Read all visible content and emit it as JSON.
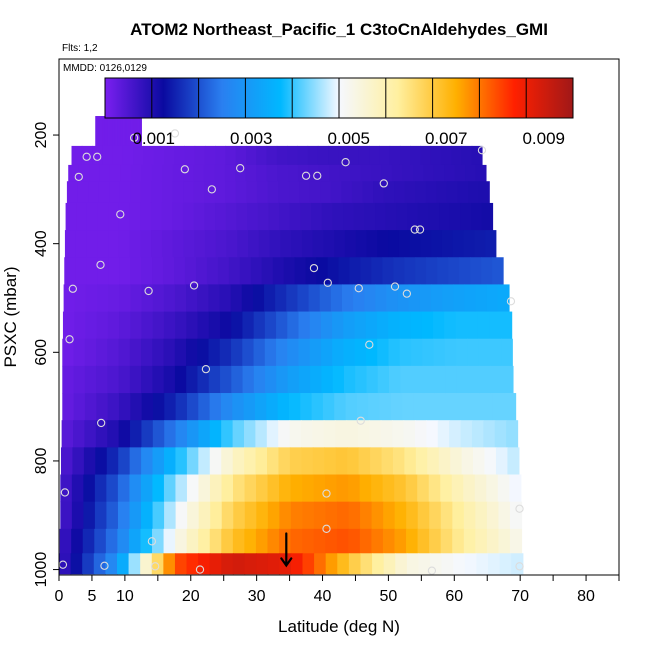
{
  "chart_data": {
    "type": "heatmap",
    "title": "ATOM2 Northeast_Pacific_1 C3toCnAldehydes_GMI",
    "subtitle_flights": "Flts: 1,2",
    "subtitle_dates": "MMDD: 0126,0129",
    "xlabel": "Latitude (deg N)",
    "ylabel": "PSXC (mbar)",
    "xlim": [
      0,
      85
    ],
    "ylim": [
      1010,
      60
    ],
    "x_ticks": [
      0,
      5,
      10,
      20,
      30,
      40,
      50,
      60,
      70,
      80
    ],
    "x_minor_ticks": [
      15,
      25,
      35,
      45,
      55,
      65,
      75,
      85
    ],
    "y_ticks": [
      200,
      400,
      600,
      800,
      1000
    ],
    "colorbar": {
      "min": 0.0,
      "max": 0.0096,
      "tick_values": [
        0.001,
        0.003,
        0.005,
        0.007,
        0.009
      ],
      "tick_labels": [
        "0.001",
        "0.003",
        "0.005",
        "0.007",
        "0.009"
      ],
      "colors": [
        "#7a1ff0",
        "#0a0aa0",
        "#2a7ff0",
        "#00b8ff",
        "#f5f8ff",
        "#fff0a0",
        "#ffb000",
        "#ff2000",
        "#a01818"
      ]
    },
    "marker": {
      "latitude": 34.5,
      "pressure": 985,
      "symbol": "down-arrow"
    },
    "rows": [
      {
        "p": 200,
        "xmin": 5.5,
        "xmax": 12.5,
        "v": [
          0.0001,
          0.0001
        ]
      },
      {
        "p": 240,
        "xmin": 1.9,
        "xmax": 64.2,
        "v": [
          0.0001,
          0.0001,
          0.0002,
          0.0003,
          0.0006,
          0.0007,
          0.0007,
          0.0008,
          0.0009
        ]
      },
      {
        "p": 270,
        "xmin": 1.4,
        "xmax": 64.8,
        "v": [
          0.0001,
          0.0001,
          0.0002,
          0.0003,
          0.0005,
          0.0006,
          0.0007,
          0.0008,
          0.0009
        ]
      },
      {
        "p": 300,
        "xmin": 1.2,
        "xmax": 65.3,
        "v": [
          0.0001,
          0.0001,
          0.0002,
          0.0003,
          0.0005,
          0.0006,
          0.0008,
          0.0009,
          0.001
        ]
      },
      {
        "p": 350,
        "xmin": 1.0,
        "xmax": 65.8,
        "v": [
          0.0001,
          0.0001,
          0.0002,
          0.0004,
          0.0006,
          0.0008,
          0.0009,
          0.001,
          0.0011
        ]
      },
      {
        "p": 400,
        "xmin": 0.9,
        "xmax": 66.3,
        "v": [
          0.0001,
          0.0001,
          0.0003,
          0.0005,
          0.0008,
          0.001,
          0.0012,
          0.0013,
          0.0014
        ]
      },
      {
        "p": 450,
        "xmin": 0.8,
        "xmax": 67.4,
        "v": [
          0.0001,
          0.0001,
          0.0003,
          0.0006,
          0.001,
          0.0013,
          0.0016,
          0.0018,
          0.002
        ]
      },
      {
        "p": 500,
        "xmin": 0.7,
        "xmax": 68.3,
        "v": [
          0.0001,
          0.0002,
          0.0005,
          0.0009,
          0.0016,
          0.0023,
          0.0028,
          0.0031,
          0.0033
        ]
      },
      {
        "p": 550,
        "xmin": 0.6,
        "xmax": 68.7,
        "v": [
          0.0001,
          0.0003,
          0.0007,
          0.0012,
          0.0021,
          0.003,
          0.0035,
          0.0037,
          0.0037
        ]
      },
      {
        "p": 600,
        "xmin": 0.5,
        "xmax": 68.8,
        "v": [
          0.0001,
          0.0004,
          0.0009,
          0.0016,
          0.0026,
          0.0034,
          0.0038,
          0.0039,
          0.0039
        ]
      },
      {
        "p": 650,
        "xmin": 0.5,
        "xmax": 68.9,
        "v": [
          0.0002,
          0.0005,
          0.0011,
          0.002,
          0.003,
          0.0037,
          0.004,
          0.004,
          0.004
        ]
      },
      {
        "p": 700,
        "xmin": 0.5,
        "xmax": 69.3,
        "v": [
          0.0002,
          0.0007,
          0.0015,
          0.0027,
          0.0036,
          0.004,
          0.0041,
          0.0041,
          0.0041
        ]
      },
      {
        "p": 750,
        "xmin": 0.4,
        "xmax": 69.6,
        "v": [
          0.0003,
          0.001,
          0.0024,
          0.004,
          0.005,
          0.0052,
          0.005,
          0.0046,
          0.0043
        ]
      },
      {
        "p": 800,
        "xmin": 0.3,
        "xmax": 69.8,
        "v": [
          0.0004,
          0.0016,
          0.0036,
          0.0055,
          0.0066,
          0.0068,
          0.0062,
          0.0052,
          0.0045
        ]
      },
      {
        "p": 850,
        "xmin": 0.2,
        "xmax": 70.1,
        "v": [
          0.0005,
          0.002,
          0.0043,
          0.0062,
          0.0072,
          0.0074,
          0.0068,
          0.0056,
          0.0047
        ]
      },
      {
        "p": 900,
        "xmin": 0.2,
        "xmax": 70.2,
        "v": [
          0.0005,
          0.0022,
          0.0047,
          0.0066,
          0.0076,
          0.0078,
          0.0071,
          0.0059,
          0.0048
        ]
      },
      {
        "p": 950,
        "xmin": 0.1,
        "xmax": 70.2,
        "v": [
          0.0006,
          0.0024,
          0.005,
          0.0069,
          0.0078,
          0.008,
          0.0073,
          0.006,
          0.005
        ]
      },
      {
        "p": 990,
        "xmin": 0.0,
        "xmax": 70.4,
        "v": [
          0.0006,
          0.0028,
          0.008,
          0.009,
          0.0087,
          0.0068,
          0.0052,
          0.0048,
          0.0046
        ]
      }
    ],
    "points": [
      [
        11.4,
        205
      ],
      [
        17.6,
        197
      ],
      [
        4.2,
        240
      ],
      [
        5.8,
        240
      ],
      [
        19.1,
        263
      ],
      [
        3.0,
        277
      ],
      [
        23.2,
        300
      ],
      [
        27.5,
        261
      ],
      [
        37.5,
        275
      ],
      [
        39.2,
        275
      ],
      [
        43.5,
        250
      ],
      [
        49.3,
        289
      ],
      [
        9.3,
        346
      ],
      [
        54.0,
        374
      ],
      [
        54.8,
        374
      ],
      [
        64.2,
        228
      ],
      [
        6.3,
        439
      ],
      [
        38.7,
        445
      ],
      [
        13.6,
        487
      ],
      [
        20.5,
        477
      ],
      [
        2.1,
        483
      ],
      [
        40.8,
        472
      ],
      [
        45.5,
        482
      ],
      [
        51.0,
        479
      ],
      [
        52.8,
        492
      ],
      [
        68.6,
        506
      ],
      [
        1.6,
        576
      ],
      [
        47.1,
        586
      ],
      [
        22.3,
        631
      ],
      [
        6.4,
        730
      ],
      [
        45.8,
        726
      ],
      [
        0.9,
        858
      ],
      [
        40.6,
        860
      ],
      [
        69.9,
        888
      ],
      [
        40.6,
        925
      ],
      [
        14.1,
        948
      ],
      [
        0.6,
        991
      ],
      [
        6.9,
        993
      ],
      [
        14.6,
        994
      ],
      [
        21.4,
        1000
      ],
      [
        56.6,
        1002
      ],
      [
        69.9,
        994
      ]
    ]
  }
}
